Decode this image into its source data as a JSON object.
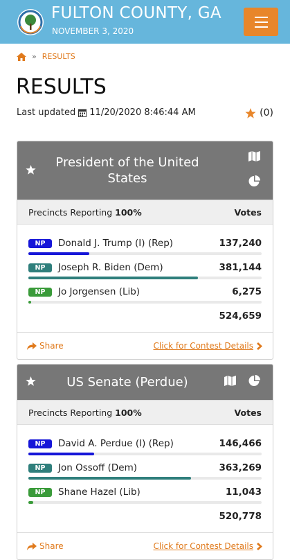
{
  "header": {
    "title": "FULTON COUNTY, GA",
    "date": "NOVEMBER 3, 2020"
  },
  "breadcrumb": {
    "separator": "»",
    "current": "RESULTS"
  },
  "page": {
    "title": "RESULTS",
    "last_updated_label": "Last updated",
    "last_updated": "11/20/2020 8:46:44 AM",
    "favorites_count": "(0)"
  },
  "contests": [
    {
      "title": "President of the United States",
      "precincts_label": "Precincts Reporting",
      "precincts_value": "100%",
      "votes_label": "Votes",
      "candidates": [
        {
          "badge": "NP",
          "name": "Donald J. Trump (I) (Rep)",
          "color": "#1616d8",
          "votes": {
            "value": 137240,
            "label": "137,240"
          }
        },
        {
          "badge": "NP",
          "name": "Joseph R. Biden (Dem)",
          "color": "#2f7f7c",
          "votes": {
            "value": 381144,
            "label": "381,144"
          }
        },
        {
          "badge": "NP",
          "name": "Jo Jorgensen (Lib)",
          "color": "#3a9b3a",
          "votes": {
            "value": 6275,
            "label": "6,275"
          }
        }
      ],
      "total": {
        "value": 524659,
        "label": "524,659"
      },
      "share": "Share",
      "details": "Click for Contest Details"
    },
    {
      "title": "US Senate (Perdue)",
      "precincts_label": "Precincts Reporting",
      "precincts_value": "100%",
      "votes_label": "Votes",
      "candidates": [
        {
          "badge": "NP",
          "name": "David A. Perdue (I) (Rep)",
          "color": "#1616d8",
          "votes": {
            "value": 146466,
            "label": "146,466"
          }
        },
        {
          "badge": "NP",
          "name": "Jon Ossoff (Dem)",
          "color": "#2f7f7c",
          "votes": {
            "value": 363269,
            "label": "363,269"
          }
        },
        {
          "badge": "NP",
          "name": "Shane Hazel (Lib)",
          "color": "#3a9b3a",
          "votes": {
            "value": 11043,
            "label": "11,043"
          }
        }
      ],
      "total": {
        "value": 520778,
        "label": "520,778"
      },
      "share": "Share",
      "details": "Click for Contest Details"
    }
  ]
}
